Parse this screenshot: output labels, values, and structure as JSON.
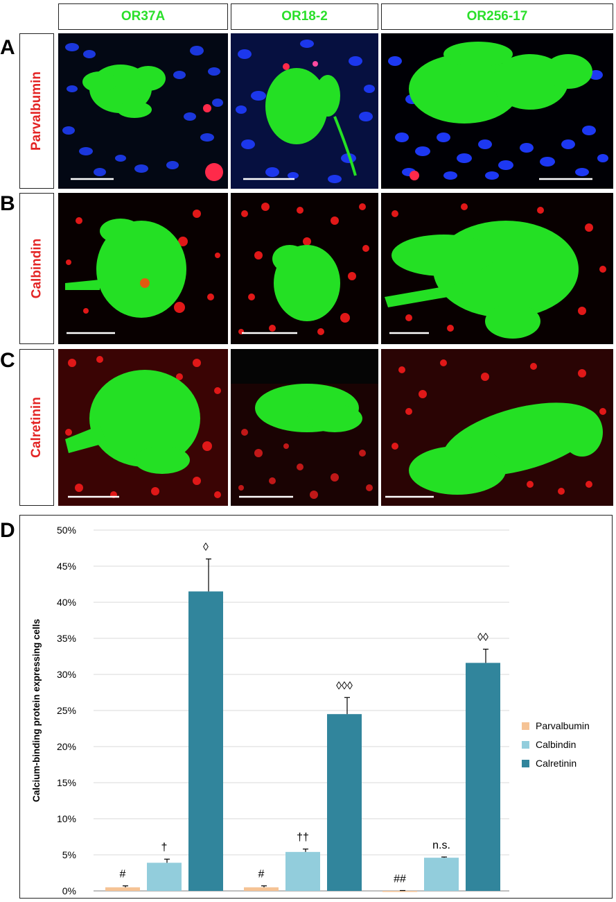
{
  "panels": {
    "columns": [
      "OR37A",
      "OR18-2",
      "OR256-17"
    ],
    "rows": [
      {
        "letter": "A",
        "label": "Parvalbumin"
      },
      {
        "letter": "B",
        "label": "Calbindin"
      },
      {
        "letter": "C",
        "label": "Calretinin"
      }
    ],
    "chart_letter": "D"
  },
  "colors": {
    "header_text": "#2adf2a",
    "row_label_text": "#e32424",
    "Parvalbumin": "#f5c395",
    "Calbindin": "#92cddc",
    "Calretinin": "#31859c"
  },
  "chart_data": {
    "type": "bar",
    "categories": [
      "OR37A",
      "OR18-2",
      "OR256-17"
    ],
    "series": [
      {
        "name": "Parvalbumin",
        "values": [
          0.5,
          0.5,
          0.0
        ],
        "errors": [
          0.2,
          0.2,
          0.05
        ]
      },
      {
        "name": "Calbindin",
        "values": [
          3.9,
          5.4,
          4.6
        ],
        "errors": [
          0.5,
          0.4,
          0.1
        ]
      },
      {
        "name": "Calretinin",
        "values": [
          41.5,
          24.5,
          31.6
        ],
        "errors": [
          4.5,
          2.3,
          1.9
        ]
      }
    ],
    "annotations": [
      [
        "#",
        "†",
        "◊"
      ],
      [
        "#",
        "††",
        "◊◊◊"
      ],
      [
        "##",
        "n.s.",
        "◊◊"
      ]
    ],
    "ylabel": "Calcium-binding protein expressing cells",
    "xlabel": "",
    "ylim": [
      0,
      50
    ],
    "yticks": [
      "0%",
      "5%",
      "10%",
      "15%",
      "20%",
      "25%",
      "30%",
      "35%",
      "40%",
      "45%",
      "50%"
    ],
    "grid": true,
    "legend_position": "right"
  }
}
